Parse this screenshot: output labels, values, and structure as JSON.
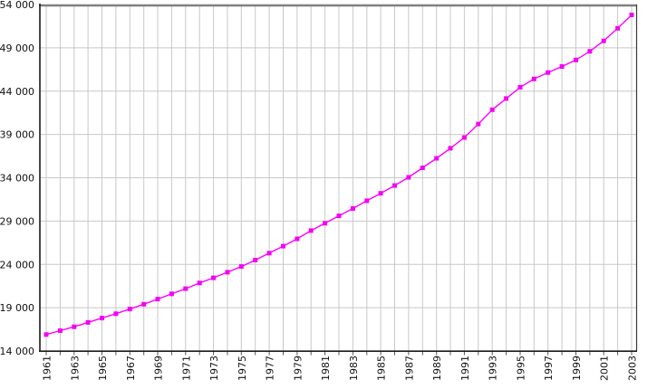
{
  "chart_data": {
    "type": "line",
    "title": "",
    "description": "Population time series, values in thousands, magenta square markers on magenta line over light gray year/value grid",
    "series": [
      {
        "name": "population-thousands",
        "x": [
          1961,
          1962,
          1963,
          1964,
          1965,
          1966,
          1967,
          1968,
          1969,
          1970,
          1971,
          1972,
          1973,
          1974,
          1975,
          1976,
          1977,
          1978,
          1979,
          1980,
          1981,
          1982,
          1983,
          1984,
          1985,
          1986,
          1987,
          1988,
          1989,
          1990,
          1991,
          1992,
          1993,
          1994,
          1995,
          1996,
          1997,
          1998,
          1999,
          2000,
          2001,
          2002,
          2003
        ],
        "values": [
          15900,
          16350,
          16800,
          17300,
          17800,
          18300,
          18850,
          19400,
          20000,
          20600,
          21200,
          21850,
          22450,
          23100,
          23750,
          24500,
          25300,
          26100,
          26950,
          27900,
          28750,
          29600,
          30450,
          31350,
          32200,
          33100,
          34050,
          35150,
          36250,
          37400,
          38650,
          40200,
          41850,
          43150,
          44450,
          45400,
          46150,
          46850,
          47600,
          48600,
          49800,
          51250,
          52800
        ]
      }
    ],
    "xlabel": "",
    "ylabel": "",
    "ylim": [
      14000,
      54000
    ],
    "y_ticks": [
      14000,
      19000,
      24000,
      29000,
      34000,
      39000,
      44000,
      49000,
      54000
    ],
    "y_tick_labels": [
      "14 000",
      "19 000",
      "24 000",
      "29 000",
      "34 000",
      "39 000",
      "44 000",
      "49 000",
      "54 000"
    ],
    "x_tick_labels": [
      "1961",
      "1963",
      "1965",
      "1967",
      "1969",
      "1971",
      "1973",
      "1975",
      "1977",
      "1979",
      "1981",
      "1983",
      "1985",
      "1987",
      "1989",
      "1991",
      "1993",
      "1995",
      "1997",
      "1999",
      "2001",
      "2003"
    ],
    "x_tick_label_years": [
      1961,
      1963,
      1965,
      1967,
      1969,
      1971,
      1973,
      1975,
      1977,
      1979,
      1981,
      1983,
      1985,
      1987,
      1989,
      1991,
      1993,
      1995,
      1997,
      1999,
      2001,
      2003
    ],
    "grid": true,
    "legend": "none",
    "marker": "square",
    "colors": {
      "series": "#FF00FF",
      "marker": "#F304F3",
      "grid": "#C8C8C8",
      "axis": "#1A1A1A",
      "top_border": "#808080",
      "background": "#FFFFFF",
      "text": "#000000"
    }
  }
}
